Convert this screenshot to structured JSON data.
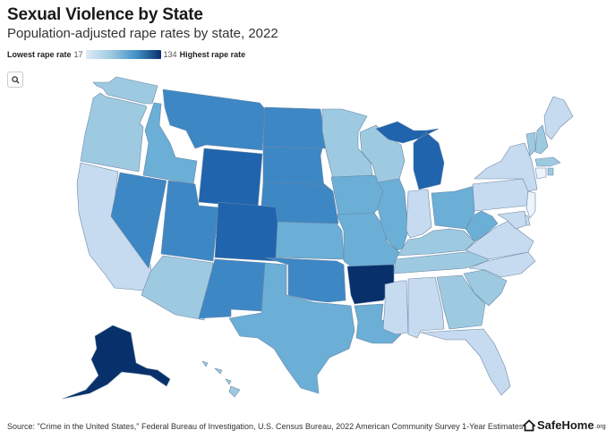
{
  "title": "Sexual Violence by State",
  "subtitle": "Population-adjusted rape rates by state, 2022",
  "legend": {
    "low_label": "Lowest rape rate",
    "low_value": "17",
    "high_value": "134",
    "high_label": "Highest rape rate",
    "colors": [
      "#deebf7",
      "#9ecae1",
      "#4292c6",
      "#08306b"
    ]
  },
  "zoom": {
    "icon": "search-icon",
    "glyph": "🔍"
  },
  "source": "Source: \"Crime in the United States,\" Federal Bureau of Investigation, U.S. Census Bureau, 2022 American Community Survey 1-Year Estimates",
  "brand": {
    "name": "SafeHome",
    "suffix": ".org"
  },
  "states": [
    {
      "code": "WA",
      "level": 2
    },
    {
      "code": "OR",
      "level": 2
    },
    {
      "code": "CA",
      "level": 1
    },
    {
      "code": "NV",
      "level": 4
    },
    {
      "code": "ID",
      "level": 3
    },
    {
      "code": "MT",
      "level": 4
    },
    {
      "code": "WY",
      "level": 5
    },
    {
      "code": "UT",
      "level": 4
    },
    {
      "code": "AZ",
      "level": 2
    },
    {
      "code": "CO",
      "level": 5
    },
    {
      "code": "NM",
      "level": 4
    },
    {
      "code": "TX",
      "level": 3
    },
    {
      "code": "OK",
      "level": 4
    },
    {
      "code": "KS",
      "level": 3
    },
    {
      "code": "NE",
      "level": 4
    },
    {
      "code": "SD",
      "level": 4
    },
    {
      "code": "ND",
      "level": 4
    },
    {
      "code": "MN",
      "level": 2
    },
    {
      "code": "IA",
      "level": 3
    },
    {
      "code": "MO",
      "level": 3
    },
    {
      "code": "AR",
      "level": 6
    },
    {
      "code": "LA",
      "level": 3
    },
    {
      "code": "WI",
      "level": 2
    },
    {
      "code": "IL",
      "level": 3
    },
    {
      "code": "MI",
      "level": 5
    },
    {
      "code": "IN",
      "level": 1
    },
    {
      "code": "OH",
      "level": 3
    },
    {
      "code": "KY",
      "level": 2
    },
    {
      "code": "TN",
      "level": 2
    },
    {
      "code": "MS",
      "level": 1
    },
    {
      "code": "AL",
      "level": 1
    },
    {
      "code": "GA",
      "level": 2
    },
    {
      "code": "FL",
      "level": 1
    },
    {
      "code": "SC",
      "level": 2
    },
    {
      "code": "NC",
      "level": 1
    },
    {
      "code": "VA",
      "level": 1
    },
    {
      "code": "WV",
      "level": 3
    },
    {
      "code": "PA",
      "level": 1
    },
    {
      "code": "NY",
      "level": 1
    },
    {
      "code": "VT",
      "level": 2
    },
    {
      "code": "NH",
      "level": 2
    },
    {
      "code": "ME",
      "level": 1
    },
    {
      "code": "MA",
      "level": 2
    },
    {
      "code": "CT",
      "level": 0
    },
    {
      "code": "RI",
      "level": 2
    },
    {
      "code": "NJ",
      "level": 0
    },
    {
      "code": "DE",
      "level": 1
    },
    {
      "code": "MD",
      "level": 1
    },
    {
      "code": "AK",
      "level": 6
    },
    {
      "code": "HI",
      "level": 2
    }
  ]
}
